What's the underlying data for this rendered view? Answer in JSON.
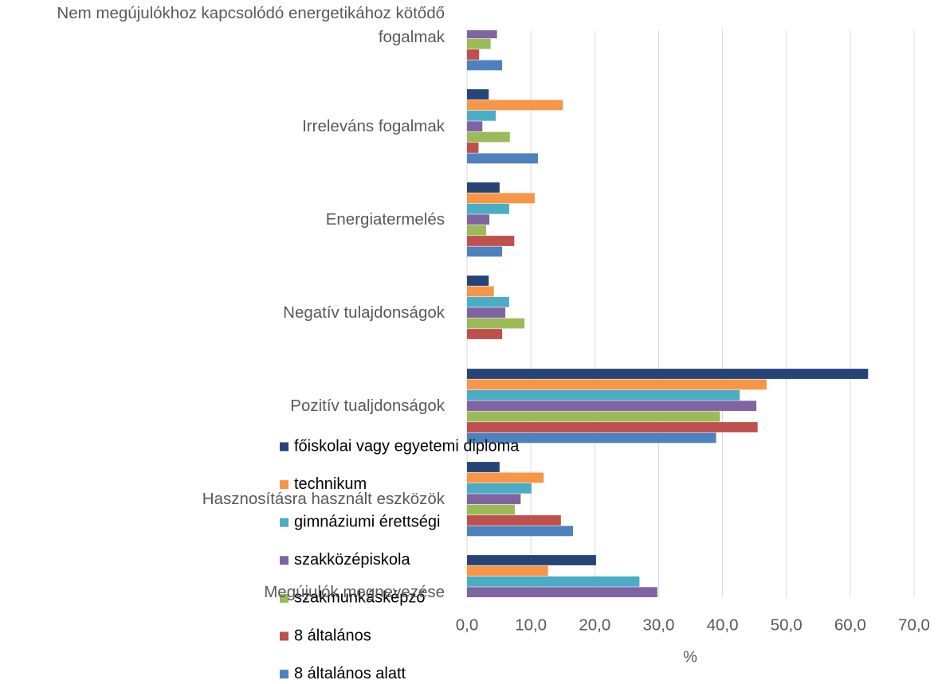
{
  "chart_data": {
    "type": "bar",
    "orientation": "horizontal",
    "x_label": "%",
    "categories": [
      "Nem megújulókhoz kapcsolódó energetikához kötődő fogalmak",
      "Irreleváns fogalmak",
      "Energiatermelés",
      "Negatív tulajdonságok",
      "Pozitív tualjdonságok",
      "Hasznosításra használt eszközök",
      "Megújulók megnevezése"
    ],
    "series": [
      {
        "name": "főiskolai vagy egyetemi diploma",
        "color": "#264478",
        "values": [
          null,
          3.4,
          5.1,
          3.4,
          62.8,
          5.1,
          20.2
        ]
      },
      {
        "name": "technikum",
        "color": "#f79646",
        "values": [
          null,
          15.0,
          10.6,
          4.2,
          46.9,
          12.0,
          12.7
        ]
      },
      {
        "name": "gimnáziumi érettségi",
        "color": "#4bacc6",
        "values": [
          null,
          4.5,
          6.6,
          6.6,
          42.7,
          10.1,
          27.0
        ]
      },
      {
        "name": "szakközépiskola",
        "color": "#8064a2",
        "values": [
          4.7,
          2.4,
          3.5,
          6.0,
          45.3,
          8.4,
          29.8
        ]
      },
      {
        "name": "szakmunkásképző",
        "color": "#9bbb59",
        "values": [
          3.7,
          6.7,
          3.0,
          9.0,
          39.6,
          7.5,
          null
        ]
      },
      {
        "name": "8 általános",
        "color": "#c0504d",
        "values": [
          1.9,
          1.8,
          7.4,
          5.5,
          45.5,
          14.7,
          null
        ]
      },
      {
        "name": "8 általános alatt",
        "color": "#4f81bd",
        "values": [
          5.5,
          11.1,
          5.5,
          0,
          39.0,
          16.6,
          null
        ]
      }
    ],
    "xlim": [
      0,
      70
    ],
    "xticks": [
      {
        "value": 0,
        "label": "0,0"
      },
      {
        "value": 10,
        "label": "10,0"
      },
      {
        "value": 20,
        "label": "20,0"
      },
      {
        "value": 30,
        "label": "30,0"
      },
      {
        "value": 40,
        "label": "40,0"
      },
      {
        "value": 50,
        "label": "50,0"
      },
      {
        "value": 60,
        "label": "60,0"
      },
      {
        "value": 70,
        "label": "70,0"
      }
    ],
    "grid": true
  }
}
